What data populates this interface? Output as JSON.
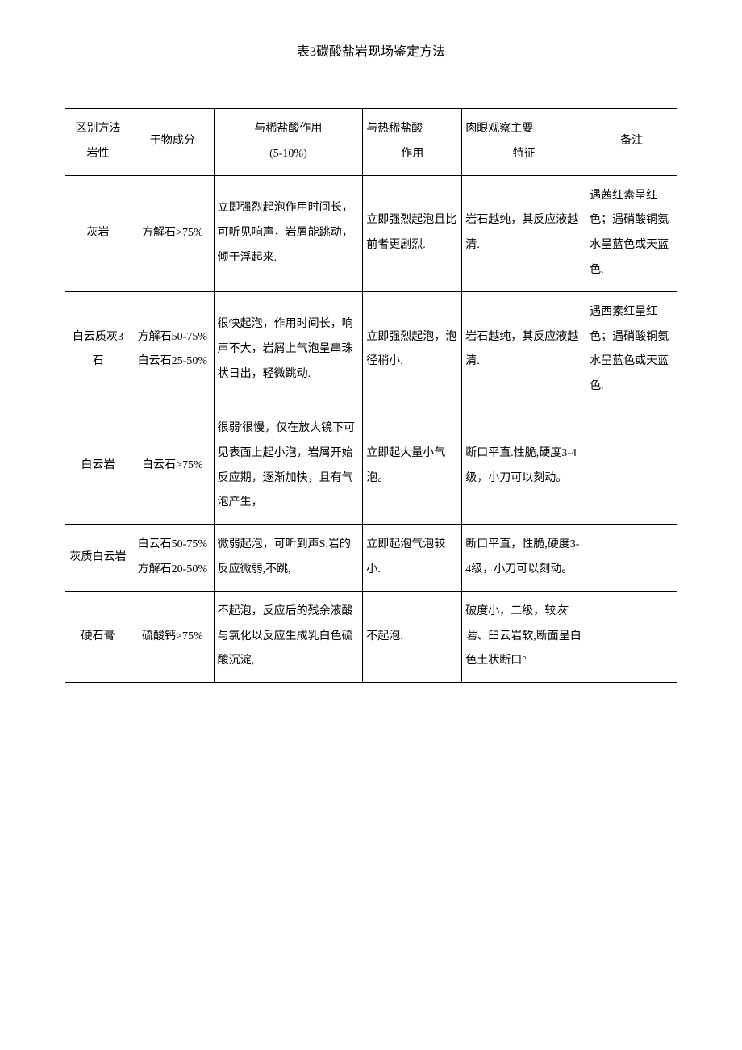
{
  "title": "表3碳酸盐岩现场鉴定方法",
  "header": {
    "c1_line1": "区别方法",
    "c1_line2": "岩性",
    "c2": "于物成分",
    "c3_line1": "与稀盐酸作用",
    "c3_line2": "(5-10%)",
    "c4_line1": "与热稀盐酸",
    "c4_line2": "作用",
    "c5_line1": "肉眼观察主要",
    "c5_line2": "特征",
    "c6": "备注"
  },
  "rows": {
    "r1": {
      "c1": "灰岩",
      "c2": "方解石>75%",
      "c3": "立即强烈起泡作用时间长，可听见响声，岩屑能跳动，倾于浮起来.",
      "c4": "立即强烈起泡且比前者更剧烈.",
      "c5": "岩石越纯，其反应液越清.",
      "c6": "遇茜红素呈红色；遇硝酸铜氨水呈蓝色或天蓝色."
    },
    "r2": {
      "c1": "白云质灰3石",
      "c2": "方解石50-75%白云石25-50%",
      "c3": "很快起泡，作用时间长，响声不大，岩屑上气泡呈串珠状日出，轻微跳动.",
      "c4": "立即强烈起泡，泡径稍小.",
      "c5": "岩石越纯，其反应液越清.",
      "c6": "遇西素红呈红色；遇硝酸铜氨水呈蓝色或天蓝色."
    },
    "r3": {
      "c1": "白云岩",
      "c2": "白云石>75%",
      "c3": "很弱'很慢，仅在放大镜下可见表面上起小泡，岩屑开始反应期，逐渐加快，且有气泡产生，",
      "c4": "立即起大量小气泡。",
      "c5": "断口平直.性脆,硬度3-4级，小刀可以刻动。",
      "c6": ""
    },
    "r4": {
      "c1": "灰质白云岩",
      "c2": "白云石50-75%方解石20-50%",
      "c3": "微弱起泡，可听到声S.岩的反应微弱,不跳,",
      "c4": "立即起泡气泡较小.",
      "c5": "断口平直，性脆,硬度3-4级，小刀可以刻动。",
      "c6": ""
    },
    "r5": {
      "c1": "硬石膏",
      "c2": "硫酸钙>75%",
      "c3": "不起泡，反应后的残余液酸与氯化以反应生成乳白色硫酸沉淀,",
      "c4": "不起泡.",
      "c5_part1": "破度小，二级，较",
      "c5_italic": "灰岩、",
      "c5_part2": "臼云岩软,断面呈白色土状断口°",
      "c6": ""
    }
  },
  "styling": {
    "background_color": "#ffffff",
    "border_color": "#000000",
    "text_color": "#000000",
    "title_fontsize": 16,
    "cell_fontsize": 14,
    "line_height": 2.2
  }
}
